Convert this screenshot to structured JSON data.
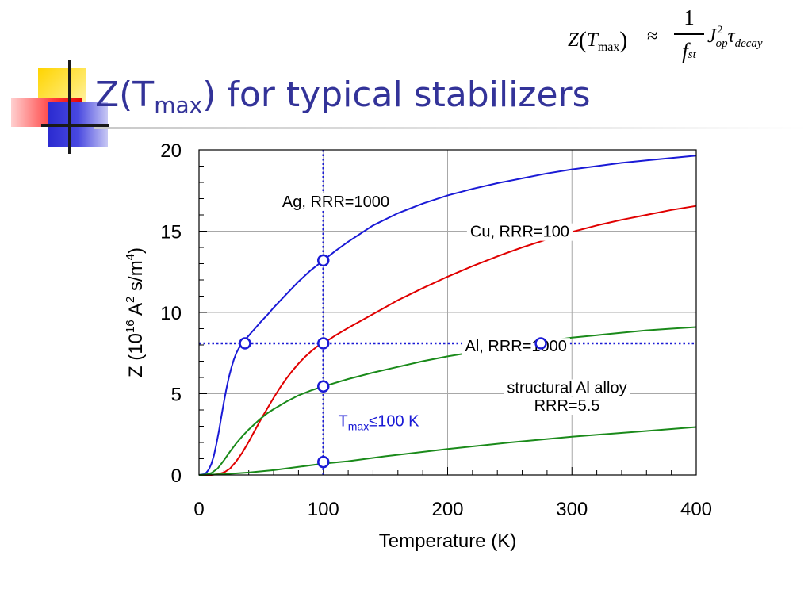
{
  "slide": {
    "title": {
      "before": "Z(T",
      "sub": "max",
      "after": ") for typical stabilizers"
    },
    "formula": {
      "lhs_z": "Z",
      "lhs_open": "(",
      "lhs_t": "T",
      "lhs_sub": "max",
      "lhs_close": ")",
      "approx": "≈",
      "numerator": "1",
      "denominator": "f",
      "denominator_sub": "st",
      "j": "J",
      "j_sup": "2",
      "j_sub": "op",
      "tau": "τ",
      "tau_sub": "decay"
    },
    "colors": {
      "title": "#333399",
      "deco_yellow": "#ffd400",
      "deco_red": "#ff3a3a",
      "deco_blue": "#3030d8"
    }
  },
  "chart_data": {
    "type": "line",
    "xlabel": "Temperature (K)",
    "ylabel_parts": {
      "a": "Z (10",
      "sup1": "16",
      "b": " A",
      "sup2": "2",
      "c": " s/m",
      "sup3": "4",
      "d": ")"
    },
    "xlim": [
      0,
      400
    ],
    "ylim": [
      0,
      20
    ],
    "xticks": [
      0,
      100,
      200,
      300,
      400
    ],
    "yticks": [
      0,
      5,
      10,
      15,
      20
    ],
    "xtick_labels": [
      "0",
      "100",
      "200",
      "300",
      "400"
    ],
    "ytick_labels": [
      "0",
      "5",
      "10",
      "15",
      "20"
    ],
    "minor_x_step": 20,
    "minor_y_step": 1,
    "grid": true,
    "series": [
      {
        "name": "Ag, RRR=1000",
        "color": "#1a1ad6",
        "x": [
          0,
          4,
          6,
          8,
          10,
          12,
          14,
          16,
          18,
          20,
          22,
          24,
          26,
          28,
          30,
          32,
          35,
          38,
          42,
          46,
          50,
          55,
          60,
          70,
          80,
          90,
          100,
          110,
          120,
          140,
          160,
          180,
          200,
          220,
          240,
          260,
          280,
          300,
          320,
          340,
          360,
          380,
          400
        ],
        "y": [
          0,
          0.05,
          0.15,
          0.35,
          0.7,
          1.2,
          1.9,
          2.7,
          3.6,
          4.5,
          5.3,
          6.0,
          6.6,
          7.1,
          7.5,
          7.8,
          8.1,
          8.4,
          8.75,
          9.1,
          9.45,
          9.85,
          10.3,
          11.1,
          11.9,
          12.6,
          13.2,
          13.8,
          14.35,
          15.35,
          16.1,
          16.7,
          17.2,
          17.6,
          17.95,
          18.25,
          18.55,
          18.8,
          19.0,
          19.2,
          19.35,
          19.5,
          19.65
        ]
      },
      {
        "name": "Cu, RRR=100",
        "color": "#e00000",
        "x": [
          0,
          10,
          15,
          20,
          25,
          30,
          35,
          40,
          45,
          50,
          55,
          60,
          65,
          70,
          75,
          80,
          85,
          90,
          95,
          100,
          110,
          120,
          140,
          160,
          180,
          200,
          220,
          240,
          260,
          280,
          300,
          320,
          340,
          360,
          380,
          400
        ],
        "y": [
          0,
          0,
          0.05,
          0.15,
          0.4,
          0.85,
          1.4,
          2.05,
          2.75,
          3.45,
          4.1,
          4.75,
          5.35,
          5.9,
          6.4,
          6.85,
          7.25,
          7.6,
          7.9,
          8.1,
          8.6,
          9.05,
          9.9,
          10.75,
          11.5,
          12.2,
          12.85,
          13.45,
          14.0,
          14.5,
          14.95,
          15.35,
          15.7,
          16.0,
          16.3,
          16.55
        ]
      },
      {
        "name": "Al, RRR=1000",
        "color": "#1a8a1a",
        "x": [
          0,
          5,
          10,
          15,
          20,
          25,
          30,
          35,
          40,
          45,
          50,
          55,
          60,
          70,
          80,
          90,
          100,
          120,
          140,
          160,
          180,
          200,
          220,
          240,
          260,
          280,
          300,
          320,
          340,
          360,
          380,
          400
        ],
        "y": [
          0,
          0.02,
          0.12,
          0.4,
          0.9,
          1.45,
          1.95,
          2.4,
          2.8,
          3.15,
          3.5,
          3.8,
          4.05,
          4.5,
          4.9,
          5.2,
          5.45,
          5.9,
          6.3,
          6.65,
          7.0,
          7.3,
          7.55,
          7.8,
          8.05,
          8.25,
          8.45,
          8.6,
          8.75,
          8.9,
          9.0,
          9.1
        ]
      },
      {
        "name": "structural Al alloy RRR=5.5",
        "color": "#1a8a1a",
        "x": [
          0,
          20,
          40,
          60,
          80,
          100,
          120,
          150,
          200,
          250,
          300,
          350,
          400
        ],
        "y": [
          0,
          0.05,
          0.15,
          0.3,
          0.5,
          0.7,
          0.85,
          1.15,
          1.6,
          2.0,
          2.35,
          2.65,
          2.95
        ]
      }
    ],
    "labels": [
      {
        "text": "Ag, RRR=1000",
        "x": 110,
        "y": 16.5
      },
      {
        "text": "Cu, RRR=100",
        "x": 258,
        "y": 14.65
      },
      {
        "text": "Al, RRR=1000",
        "x": 255,
        "y": 7.6
      },
      {
        "text": "structural Al alloy",
        "x": 296,
        "y": 5.05
      },
      {
        "text": "RRR=5.5",
        "x": 296,
        "y": 3.95
      }
    ],
    "reference_lines": {
      "color": "#1a1ad6",
      "vertical_x": 100,
      "horizontal_y": 8.1
    },
    "markers": [
      {
        "x": 37,
        "y": 8.1
      },
      {
        "x": 100,
        "y": 8.1
      },
      {
        "x": 100,
        "y": 13.2
      },
      {
        "x": 100,
        "y": 5.45
      },
      {
        "x": 100,
        "y": 0.8
      },
      {
        "x": 275,
        "y": 8.1
      }
    ],
    "annotation": {
      "t": "T",
      "sub": "max",
      "rest": "≤100 K",
      "x": 112,
      "y": 3.0,
      "color": "#1a1ad6"
    }
  }
}
